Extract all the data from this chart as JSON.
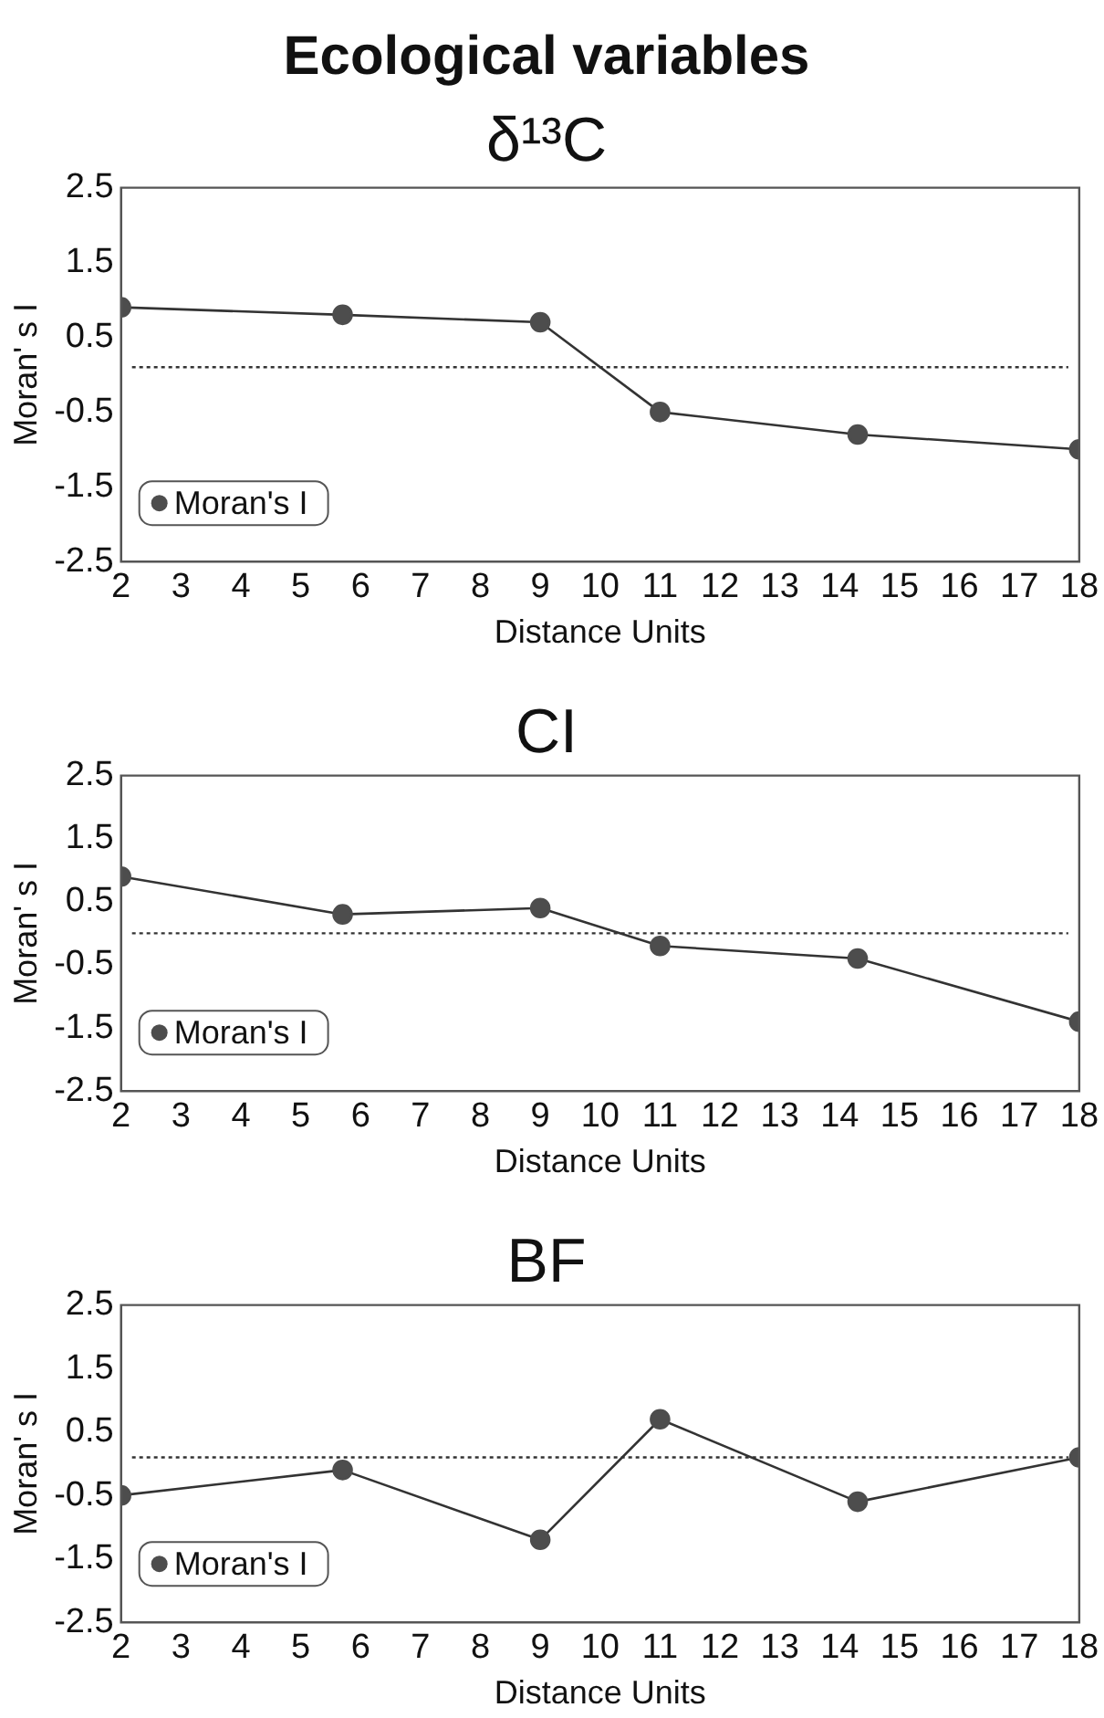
{
  "chart_data": [
    {
      "type": "line",
      "title": "Ecological variables",
      "subtitle": "δ¹³C",
      "xlabel": "Distance Units",
      "ylabel": "Moran' s I",
      "x": [
        2,
        5.7,
        9,
        11,
        14.3,
        18
      ],
      "series": [
        {
          "name": "Moran's I",
          "color": "#4d4d4d",
          "values": [
            0.9,
            0.8,
            0.7,
            -0.5,
            -0.8,
            -1.0
          ]
        }
      ],
      "xlim": [
        2,
        18
      ],
      "xticks": [
        2,
        3,
        4,
        5,
        6,
        7,
        8,
        9,
        10,
        11,
        12,
        13,
        14,
        15,
        16,
        17,
        18
      ],
      "ylim": [
        -2.5,
        2.5
      ],
      "yticks": [
        -2.5,
        -1.5,
        -0.5,
        0.5,
        1.5,
        2.5
      ],
      "ref_lines": [
        {
          "axis": "y",
          "value": 0.1,
          "color": "#333333",
          "line_style": "dotted"
        }
      ],
      "grid": false,
      "legend": "bottom left",
      "marker": "circle",
      "line_style": "solid"
    },
    {
      "type": "line",
      "title": "CI",
      "xlabel": "Distance Units",
      "ylabel": "Moran' s I",
      "x": [
        2,
        5.7,
        9,
        11,
        14.3,
        18
      ],
      "series": [
        {
          "name": "Moran's I",
          "color": "#4d4d4d",
          "values": [
            0.9,
            0.3,
            0.4,
            -0.2,
            -0.4,
            -1.4
          ]
        }
      ],
      "xlim": [
        2,
        18
      ],
      "xticks": [
        2,
        3,
        4,
        5,
        6,
        7,
        8,
        9,
        10,
        11,
        12,
        13,
        14,
        15,
        16,
        17,
        18
      ],
      "ylim": [
        -2.5,
        2.5
      ],
      "yticks": [
        -2.5,
        -1.5,
        -0.5,
        0.5,
        1.5,
        2.5
      ],
      "ref_lines": [
        {
          "axis": "y",
          "value": 0,
          "color": "#333333",
          "line_style": "dotted"
        }
      ],
      "grid": false,
      "legend": "bottom left",
      "marker": "circle",
      "line_style": "solid"
    },
    {
      "type": "line",
      "title": "BF",
      "xlabel": "Distance Units",
      "ylabel": "Moran' s I",
      "x": [
        2,
        5.7,
        9,
        11,
        14.3,
        18
      ],
      "series": [
        {
          "name": "Moran's I",
          "color": "#4d4d4d",
          "values": [
            -0.5,
            -0.1,
            -1.2,
            0.7,
            -0.6,
            0.1
          ]
        }
      ],
      "xlim": [
        2,
        18
      ],
      "xticks": [
        2,
        3,
        4,
        5,
        6,
        7,
        8,
        9,
        10,
        11,
        12,
        13,
        14,
        15,
        16,
        17,
        18
      ],
      "ylim": [
        -2.5,
        2.5
      ],
      "yticks": [
        -2.5,
        -1.5,
        -0.5,
        0.5,
        1.5,
        2.5
      ],
      "ref_lines": [
        {
          "axis": "y",
          "value": 0.1,
          "color": "#333333",
          "line_style": "dotted"
        }
      ],
      "grid": false,
      "legend": "bottom left",
      "marker": "circle",
      "line_style": "solid"
    }
  ]
}
